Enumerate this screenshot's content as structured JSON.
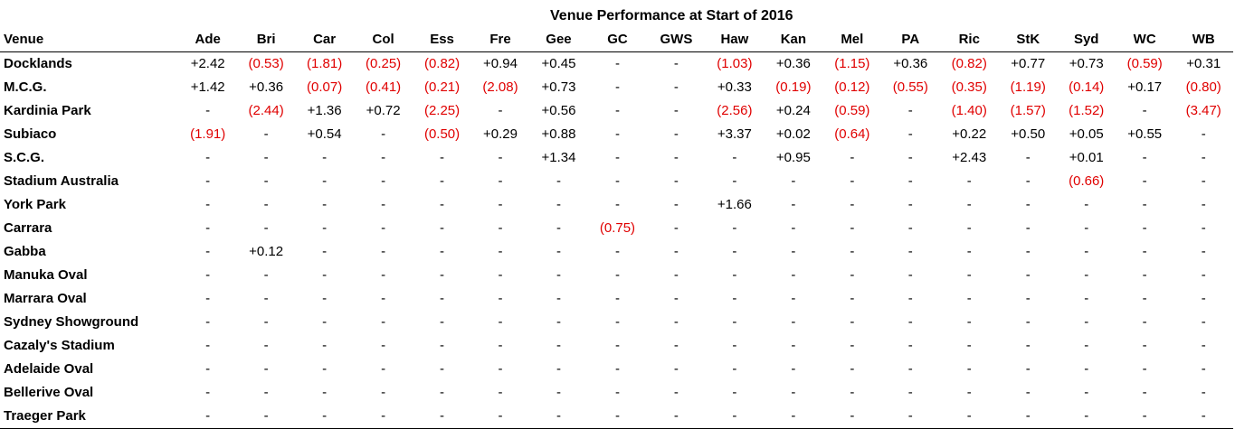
{
  "title": "Venue Performance at Start of 2016",
  "venue_header": "Venue",
  "teams": [
    "Ade",
    "Bri",
    "Car",
    "Col",
    "Ess",
    "Fre",
    "Gee",
    "GC",
    "GWS",
    "Haw",
    "Kan",
    "Mel",
    "PA",
    "Ric",
    "StK",
    "Syd",
    "WC",
    "WB"
  ],
  "rows": [
    {
      "venue": "Docklands",
      "values": [
        "+2.42",
        "(0.53)",
        "(1.81)",
        "(0.25)",
        "(0.82)",
        "+0.94",
        "+0.45",
        "-",
        "-",
        "(1.03)",
        "+0.36",
        "(1.15)",
        "+0.36",
        "(0.82)",
        "+0.77",
        "+0.73",
        "(0.59)",
        "+0.31"
      ]
    },
    {
      "venue": "M.C.G.",
      "values": [
        "+1.42",
        "+0.36",
        "(0.07)",
        "(0.41)",
        "(0.21)",
        "(2.08)",
        "+0.73",
        "-",
        "-",
        "+0.33",
        "(0.19)",
        "(0.12)",
        "(0.55)",
        "(0.35)",
        "(1.19)",
        "(0.14)",
        "+0.17",
        "(0.80)"
      ]
    },
    {
      "venue": "Kardinia Park",
      "values": [
        "-",
        "(2.44)",
        "+1.36",
        "+0.72",
        "(2.25)",
        "-",
        "+0.56",
        "-",
        "-",
        "(2.56)",
        "+0.24",
        "(0.59)",
        "-",
        "(1.40)",
        "(1.57)",
        "(1.52)",
        "-",
        "(3.47)"
      ]
    },
    {
      "venue": "Subiaco",
      "values": [
        "(1.91)",
        "-",
        "+0.54",
        "-",
        "(0.50)",
        "+0.29",
        "+0.88",
        "-",
        "-",
        "+3.37",
        "+0.02",
        "(0.64)",
        "-",
        "+0.22",
        "+0.50",
        "+0.05",
        "+0.55",
        "-"
      ]
    },
    {
      "venue": "S.C.G.",
      "values": [
        "-",
        "-",
        "-",
        "-",
        "-",
        "-",
        "+1.34",
        "-",
        "-",
        "-",
        "+0.95",
        "-",
        "-",
        "+2.43",
        "-",
        "+0.01",
        "-",
        "-"
      ]
    },
    {
      "venue": "Stadium Australia",
      "values": [
        "-",
        "-",
        "-",
        "-",
        "-",
        "-",
        "-",
        "-",
        "-",
        "-",
        "-",
        "-",
        "-",
        "-",
        "-",
        "(0.66)",
        "-",
        "-"
      ]
    },
    {
      "venue": "York Park",
      "values": [
        "-",
        "-",
        "-",
        "-",
        "-",
        "-",
        "-",
        "-",
        "-",
        "+1.66",
        "-",
        "-",
        "-",
        "-",
        "-",
        "-",
        "-",
        "-"
      ]
    },
    {
      "venue": "Carrara",
      "values": [
        "-",
        "-",
        "-",
        "-",
        "-",
        "-",
        "-",
        "(0.75)",
        "-",
        "-",
        "-",
        "-",
        "-",
        "-",
        "-",
        "-",
        "-",
        "-"
      ]
    },
    {
      "venue": "Gabba",
      "values": [
        "-",
        "+0.12",
        "-",
        "-",
        "-",
        "-",
        "-",
        "-",
        "-",
        "-",
        "-",
        "-",
        "-",
        "-",
        "-",
        "-",
        "-",
        "-"
      ]
    },
    {
      "venue": "Manuka Oval",
      "values": [
        "-",
        "-",
        "-",
        "-",
        "-",
        "-",
        "-",
        "-",
        "-",
        "-",
        "-",
        "-",
        "-",
        "-",
        "-",
        "-",
        "-",
        "-"
      ]
    },
    {
      "venue": "Marrara Oval",
      "values": [
        "-",
        "-",
        "-",
        "-",
        "-",
        "-",
        "-",
        "-",
        "-",
        "-",
        "-",
        "-",
        "-",
        "-",
        "-",
        "-",
        "-",
        "-"
      ]
    },
    {
      "venue": "Sydney Showground",
      "values": [
        "-",
        "-",
        "-",
        "-",
        "-",
        "-",
        "-",
        "-",
        "-",
        "-",
        "-",
        "-",
        "-",
        "-",
        "-",
        "-",
        "-",
        "-"
      ]
    },
    {
      "venue": "Cazaly's Stadium",
      "values": [
        "-",
        "-",
        "-",
        "-",
        "-",
        "-",
        "-",
        "-",
        "-",
        "-",
        "-",
        "-",
        "-",
        "-",
        "-",
        "-",
        "-",
        "-"
      ]
    },
    {
      "venue": "Adelaide Oval",
      "values": [
        "-",
        "-",
        "-",
        "-",
        "-",
        "-",
        "-",
        "-",
        "-",
        "-",
        "-",
        "-",
        "-",
        "-",
        "-",
        "-",
        "-",
        "-"
      ]
    },
    {
      "venue": "Bellerive Oval",
      "values": [
        "-",
        "-",
        "-",
        "-",
        "-",
        "-",
        "-",
        "-",
        "-",
        "-",
        "-",
        "-",
        "-",
        "-",
        "-",
        "-",
        "-",
        "-"
      ]
    },
    {
      "venue": "Traeger Park",
      "values": [
        "-",
        "-",
        "-",
        "-",
        "-",
        "-",
        "-",
        "-",
        "-",
        "-",
        "-",
        "-",
        "-",
        "-",
        "-",
        "-",
        "-",
        "-"
      ]
    }
  ],
  "colors": {
    "negative": "#e00000",
    "positive": "#000000"
  }
}
